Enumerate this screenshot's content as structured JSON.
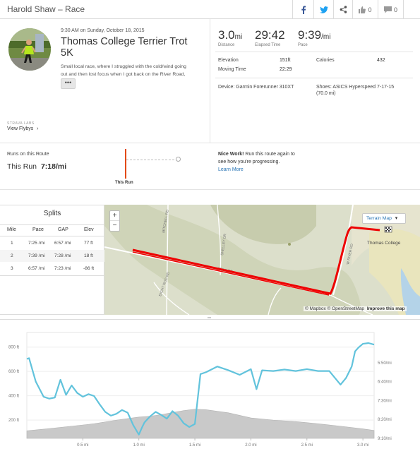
{
  "header": {
    "title": "Harold Shaw – Race",
    "kudos_count": "0",
    "comment_count": "0"
  },
  "activity": {
    "datetime": "9:30 AM on Sunday, October 18, 2015",
    "title_line1": "Thomas College Terrier Trot",
    "title_line2": "5K",
    "description_line1": "Small local race, where I struggled with the cold/wind going",
    "description_line2": "out and then lost focus when I got back on the River Road,",
    "more_label": "•••",
    "labs_label": "STRAVA LABS",
    "flyby_label": "View Flybys",
    "flyby_arrow": "›"
  },
  "stats": {
    "distance_value": "3.0",
    "distance_unit": "mi",
    "distance_label": "Distance",
    "elapsed_value": "29:42",
    "elapsed_label": "Elapsed Time",
    "pace_value": "9:39",
    "pace_unit": "/mi",
    "pace_label": "Pace",
    "elevation_label": "Elevation",
    "elevation_value": "151ft",
    "moving_label": "Moving Time",
    "moving_value": "22:29",
    "calories_label": "Calories",
    "calories_value": "432",
    "device_text": "Device: Garmin Forerunner 310XT",
    "shoes_line1": "Shoes: ASICS Hyperspeed 7-17-15",
    "shoes_line2": "(70.0 mi)"
  },
  "route": {
    "heading": "Runs on this Route",
    "this_run_label": "This Run",
    "this_run_pace": "7:18/mi",
    "marker_label": "This Run",
    "nice_work": "Nice Work!",
    "message_line1": " Run this route again to",
    "message_line2": "see how you're progressing.",
    "learn_more": "Learn More"
  },
  "splits": {
    "title": "Splits",
    "headers": [
      "Mile",
      "Pace",
      "GAP",
      "Elev"
    ],
    "rows": [
      [
        "1",
        "7:25 /mi",
        "6:57 /mi",
        "77 ft"
      ],
      [
        "2",
        "7:39 /mi",
        "7:28 /mi",
        "18 ft"
      ],
      [
        "3",
        "6:57 /mi",
        "7:23 /mi",
        "-86 ft"
      ]
    ]
  },
  "map": {
    "zoom_in": "+",
    "zoom_out": "−",
    "terrain_label": "Terrain Map",
    "terrain_caret": "▾",
    "attribution": "© Mapbox © OpenStreetMap",
    "improve": "Improve this map",
    "place_label": "Thomas College",
    "roads": [
      "MITCHELL RD",
      "SHELLEY DR",
      "EIGHT ROD RD",
      "TEDS RD",
      "W RIVER RD"
    ],
    "route_color": "#ee0000"
  },
  "chart_data": {
    "type": "line",
    "x_ticks": [
      "0.5 mi",
      "1.0 mi",
      "1.5 mi",
      "2.0 mi",
      "2.5 mi",
      "3.0 mi"
    ],
    "y_left_ticks": [
      "200 ft",
      "400 ft",
      "600 ft",
      "800 ft"
    ],
    "y_right_ticks": [
      "9:10/mi",
      "8:20/mi",
      "7:30/mi",
      "6:40/mi",
      "5:50/mi"
    ],
    "xlim": [
      0,
      3.1
    ],
    "ylim_left": [
      50,
      920
    ],
    "ylim_right_sec": [
      550,
      270
    ],
    "series": [
      {
        "kind": "elevation",
        "x": [
          0,
          0.2,
          0.4,
          0.6,
          0.8,
          1.0,
          1.1,
          1.2,
          1.3,
          1.4,
          1.5,
          1.6,
          1.8,
          2.0,
          2.2,
          2.4,
          2.6,
          2.8,
          3.0,
          3.1
        ],
        "y": [
          112,
          130,
          150,
          170,
          200,
          225,
          232,
          245,
          262,
          278,
          290,
          285,
          260,
          218,
          200,
          188,
          170,
          150,
          128,
          115
        ]
      },
      {
        "kind": "pace",
        "x": [
          0,
          0.02,
          0.08,
          0.15,
          0.2,
          0.25,
          0.3,
          0.35,
          0.4,
          0.45,
          0.5,
          0.55,
          0.6,
          0.65,
          0.7,
          0.75,
          0.8,
          0.85,
          0.9,
          0.95,
          1.0,
          1.03,
          1.05,
          1.1,
          1.15,
          1.2,
          1.25,
          1.3,
          1.35,
          1.4,
          1.45,
          1.5,
          1.55,
          1.6,
          1.7,
          1.8,
          1.9,
          2.0,
          2.05,
          2.1,
          2.2,
          2.3,
          2.4,
          2.5,
          2.6,
          2.7,
          2.8,
          2.85,
          2.9,
          2.93,
          2.96,
          3.0,
          3.05,
          3.1
        ],
        "y": [
          340,
          338,
          400,
          440,
          445,
          442,
          395,
          435,
          410,
          430,
          440,
          433,
          438,
          460,
          480,
          490,
          485,
          475,
          482,
          515,
          540,
          520,
          508,
          492,
          480,
          488,
          498,
          478,
          490,
          510,
          520,
          512,
          380,
          375,
          360,
          370,
          382,
          367,
          420,
          370,
          372,
          368,
          372,
          367,
          372,
          372,
          408,
          390,
          360,
          320,
          310,
          300,
          298,
          302
        ]
      }
    ]
  }
}
